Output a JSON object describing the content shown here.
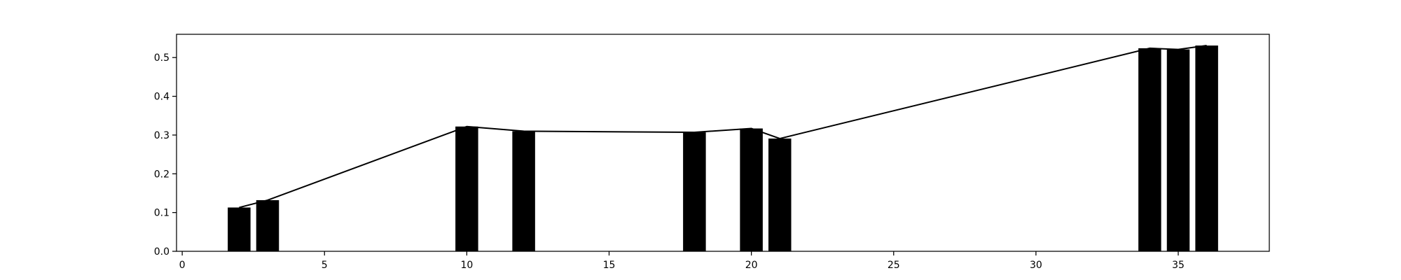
{
  "chart_data": {
    "type": "bar",
    "title": "",
    "xlabel": "",
    "ylabel": "",
    "xlim": [
      -0.2,
      38.2
    ],
    "ylim": [
      0,
      0.56
    ],
    "x_ticks": [
      0,
      5,
      10,
      15,
      20,
      25,
      30,
      35
    ],
    "y_ticks": [
      0.0,
      0.1,
      0.2,
      0.3,
      0.4,
      0.5
    ],
    "x_tick_labels": [
      "0",
      "5",
      "10",
      "15",
      "20",
      "25",
      "30",
      "35"
    ],
    "y_tick_labels": [
      "0.0",
      "0.1",
      "0.2",
      "0.3",
      "0.4",
      "0.5"
    ],
    "grid": false,
    "legend": "none",
    "bar_width": 0.8,
    "bars": {
      "x": [
        2,
        3,
        10,
        12,
        18,
        20,
        21,
        34,
        35,
        36
      ],
      "values": [
        0.113,
        0.132,
        0.322,
        0.31,
        0.307,
        0.317,
        0.291,
        0.524,
        0.521,
        0.531
      ],
      "color": "#000000"
    },
    "line": {
      "x": [
        2,
        3,
        10,
        12,
        18,
        20,
        21,
        34,
        35,
        36
      ],
      "values": [
        0.113,
        0.132,
        0.322,
        0.31,
        0.307,
        0.317,
        0.291,
        0.524,
        0.521,
        0.531
      ],
      "color": "#000000"
    },
    "colors": {
      "bar": "#000000",
      "line": "#000000",
      "axes": "#000000",
      "background": "#ffffff"
    }
  }
}
